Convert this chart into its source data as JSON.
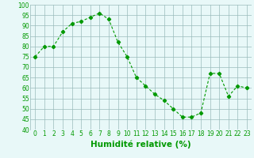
{
  "x": [
    0,
    1,
    2,
    3,
    4,
    5,
    6,
    7,
    8,
    9,
    10,
    11,
    12,
    13,
    14,
    15,
    16,
    17,
    18,
    19,
    20,
    21,
    22,
    23
  ],
  "y": [
    75,
    80,
    80,
    87,
    91,
    92,
    94,
    96,
    93,
    82,
    75,
    65,
    61,
    57,
    54,
    50,
    46,
    46,
    48,
    67,
    67,
    56,
    61,
    60
  ],
  "line_color": "#009900",
  "marker": "D",
  "marker_size": 2.2,
  "bg_color": "#e8f8f8",
  "grid_color": "#99bbbb",
  "xlabel": "Humidité relative (%)",
  "xlabel_color": "#009900",
  "ylim": [
    40,
    100
  ],
  "xlim": [
    -0.5,
    23.5
  ],
  "yticks": [
    40,
    45,
    50,
    55,
    60,
    65,
    70,
    75,
    80,
    85,
    90,
    95,
    100
  ],
  "xticks": [
    0,
    1,
    2,
    3,
    4,
    5,
    6,
    7,
    8,
    9,
    10,
    11,
    12,
    13,
    14,
    15,
    16,
    17,
    18,
    19,
    20,
    21,
    22,
    23
  ],
  "tick_color": "#009900",
  "tick_fontsize": 5.5,
  "xlabel_fontsize": 7.5
}
